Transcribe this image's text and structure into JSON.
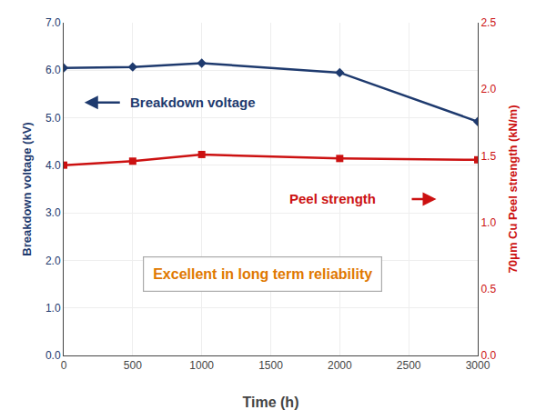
{
  "chart_data": {
    "type": "line",
    "x": [
      0,
      500,
      1000,
      2000,
      3000
    ],
    "xlabel": "Time (h)",
    "ylabel": "Breakdown voltage (kV)",
    "y2label": "70μm Cu Peel strength (kN/m)",
    "series": [
      {
        "name": "Breakdown voltage",
        "color": "#1e3a6e",
        "marker": "diamond",
        "values": [
          6.05,
          6.07,
          6.15,
          5.95,
          4.92
        ]
      },
      {
        "name": "Peel strength",
        "color": "#cc1111",
        "marker": "square",
        "axis": "y2",
        "values": [
          1.43,
          1.46,
          1.51,
          1.48,
          1.47
        ]
      }
    ],
    "annotations": [
      {
        "text": "Excellent in long term reliability",
        "color": "#e07800"
      }
    ],
    "xlim": [
      0,
      3000
    ],
    "xticks": [
      0,
      500,
      1000,
      1500,
      2000,
      2500,
      3000
    ],
    "ylim": [
      0.0,
      7.0
    ],
    "yticks": [
      {
        "value": 0,
        "label": "0.0"
      },
      {
        "value": 1,
        "label": "1.0"
      },
      {
        "value": 2,
        "label": "2.0"
      },
      {
        "value": 3,
        "label": "3.0"
      },
      {
        "value": 4,
        "label": "4.0"
      },
      {
        "value": 5,
        "label": "5.0"
      },
      {
        "value": 6,
        "label": "6.0"
      },
      {
        "value": 7,
        "label": "7.0"
      }
    ],
    "y2lim": [
      0.0,
      2.5
    ],
    "y2ticks": [
      {
        "value": 0,
        "label": "0.0"
      },
      {
        "value": 0.5,
        "label": "0.5"
      },
      {
        "value": 1,
        "label": "1.0"
      },
      {
        "value": 1.5,
        "label": "1.5"
      },
      {
        "value": 2,
        "label": "2.0"
      },
      {
        "value": 2.5,
        "label": "2.5"
      }
    ],
    "grid": true
  }
}
